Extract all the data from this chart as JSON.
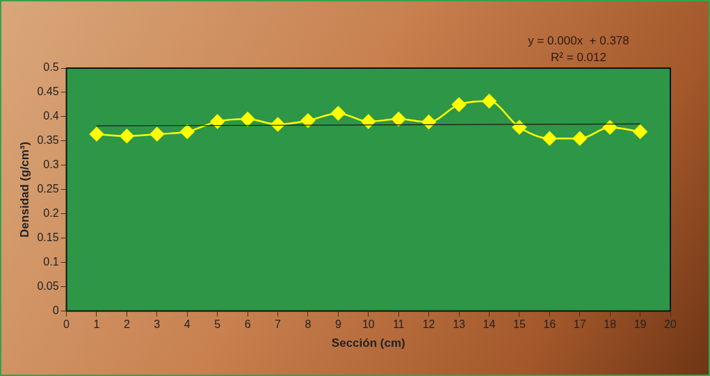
{
  "chart_data": {
    "type": "line",
    "xlabel": "Sección (cm)",
    "ylabel": "Densidad (g/cm³)",
    "x": [
      1,
      2,
      3,
      4,
      5,
      6,
      7,
      8,
      9,
      10,
      11,
      12,
      13,
      14,
      15,
      16,
      17,
      18,
      19
    ],
    "series": [
      {
        "color": "#ffff00",
        "marker": "diamond",
        "values": [
          0.364,
          0.36,
          0.364,
          0.369,
          0.39,
          0.395,
          0.384,
          0.392,
          0.407,
          0.39,
          0.395,
          0.389,
          0.425,
          0.432,
          0.378,
          0.355,
          0.355,
          0.378,
          0.369
        ]
      },
      {
        "color": "#1a1a1a",
        "marker": "none",
        "x": [
          1,
          19
        ],
        "values": [
          0.381,
          0.385
        ]
      }
    ],
    "xlim": [
      0,
      20
    ],
    "xticks": [
      0,
      1,
      2,
      3,
      4,
      5,
      6,
      7,
      8,
      9,
      10,
      11,
      12,
      13,
      14,
      15,
      16,
      17,
      18,
      19,
      20
    ],
    "ylim": [
      0,
      0.5
    ],
    "yticks": [
      0,
      0.05,
      0.1,
      0.15,
      0.2,
      0.25,
      0.3,
      0.35,
      0.4,
      0.45,
      0.5
    ],
    "annotations": [
      "y = 0.000x  + 0.378",
      "R² = 0.012"
    ],
    "grid": false,
    "legend": false
  }
}
